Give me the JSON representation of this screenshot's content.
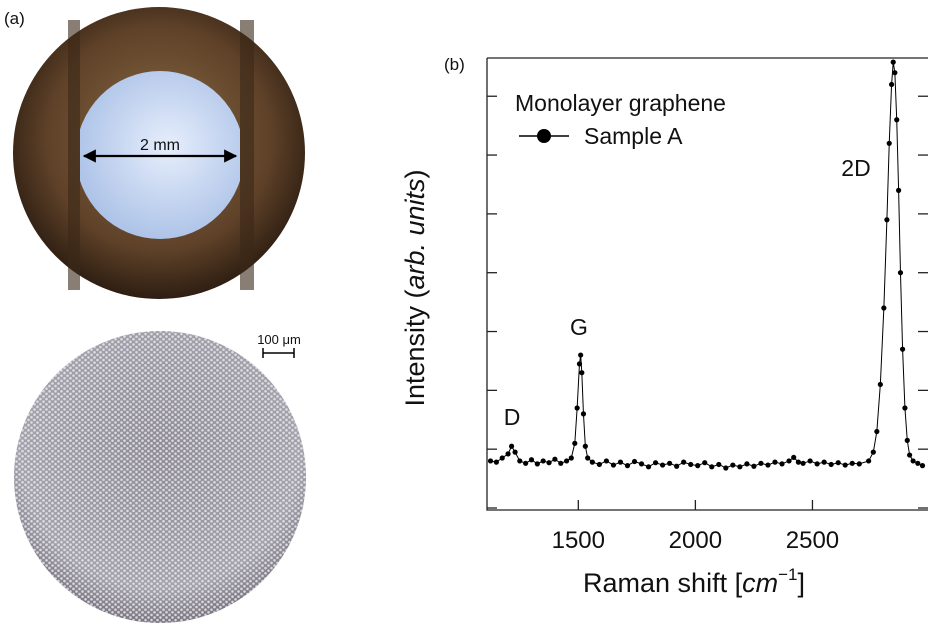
{
  "panel_a": {
    "label": "(a)",
    "scale_top": "2 mm",
    "scale_bottom": "100 μm"
  },
  "chart_data": {
    "type": "line",
    "panel_label": "(b)",
    "x_label": [
      "Raman shift [",
      "cm",
      "−1",
      "]"
    ],
    "y_label": [
      "Intensity (",
      "arb. units",
      ")"
    ],
    "legend_title": "Monolayer graphene",
    "annotations": [
      "D",
      "G",
      "2D"
    ],
    "x": [
      1125,
      1150,
      1175,
      1200,
      1215,
      1230,
      1250,
      1275,
      1300,
      1325,
      1350,
      1375,
      1400,
      1425,
      1450,
      1470,
      1485,
      1495,
      1505,
      1510,
      1515,
      1522,
      1530,
      1540,
      1560,
      1590,
      1620,
      1650,
      1680,
      1710,
      1740,
      1770,
      1800,
      1830,
      1860,
      1890,
      1920,
      1950,
      1980,
      2010,
      2040,
      2070,
      2100,
      2130,
      2160,
      2190,
      2220,
      2250,
      2280,
      2310,
      2340,
      2370,
      2400,
      2420,
      2440,
      2460,
      2490,
      2520,
      2550,
      2580,
      2610,
      2640,
      2670,
      2700,
      2740,
      2760,
      2775,
      2790,
      2805,
      2818,
      2828,
      2838,
      2845,
      2852,
      2860,
      2868,
      2876,
      2885,
      2895,
      2905,
      2915,
      2930,
      2950,
      2970
    ],
    "series": [
      {
        "name": "Sample A",
        "color": "#000000",
        "values": [
          0.8,
          0.78,
          0.85,
          0.92,
          1.05,
          0.95,
          0.8,
          0.76,
          0.82,
          0.75,
          0.8,
          0.77,
          0.83,
          0.76,
          0.8,
          0.85,
          1.1,
          1.7,
          2.45,
          2.6,
          2.3,
          1.6,
          1.05,
          0.85,
          0.78,
          0.74,
          0.8,
          0.73,
          0.78,
          0.72,
          0.79,
          0.75,
          0.7,
          0.77,
          0.73,
          0.76,
          0.71,
          0.78,
          0.74,
          0.72,
          0.77,
          0.7,
          0.74,
          0.68,
          0.73,
          0.7,
          0.75,
          0.71,
          0.76,
          0.73,
          0.78,
          0.75,
          0.8,
          0.86,
          0.78,
          0.76,
          0.8,
          0.75,
          0.78,
          0.74,
          0.77,
          0.73,
          0.76,
          0.75,
          0.8,
          0.95,
          1.3,
          2.1,
          3.4,
          4.9,
          6.2,
          7.2,
          7.58,
          7.4,
          6.6,
          5.4,
          4.0,
          2.7,
          1.7,
          1.15,
          0.9,
          0.8,
          0.76,
          0.72
        ]
      }
    ],
    "xlim": [
      1110,
      2985
    ],
    "ylim": [
      0,
      7.65
    ],
    "xticks": [
      1500,
      2000,
      2500
    ],
    "yticks": [
      0,
      1,
      2,
      3,
      4,
      5,
      6,
      7
    ],
    "markers": true
  }
}
